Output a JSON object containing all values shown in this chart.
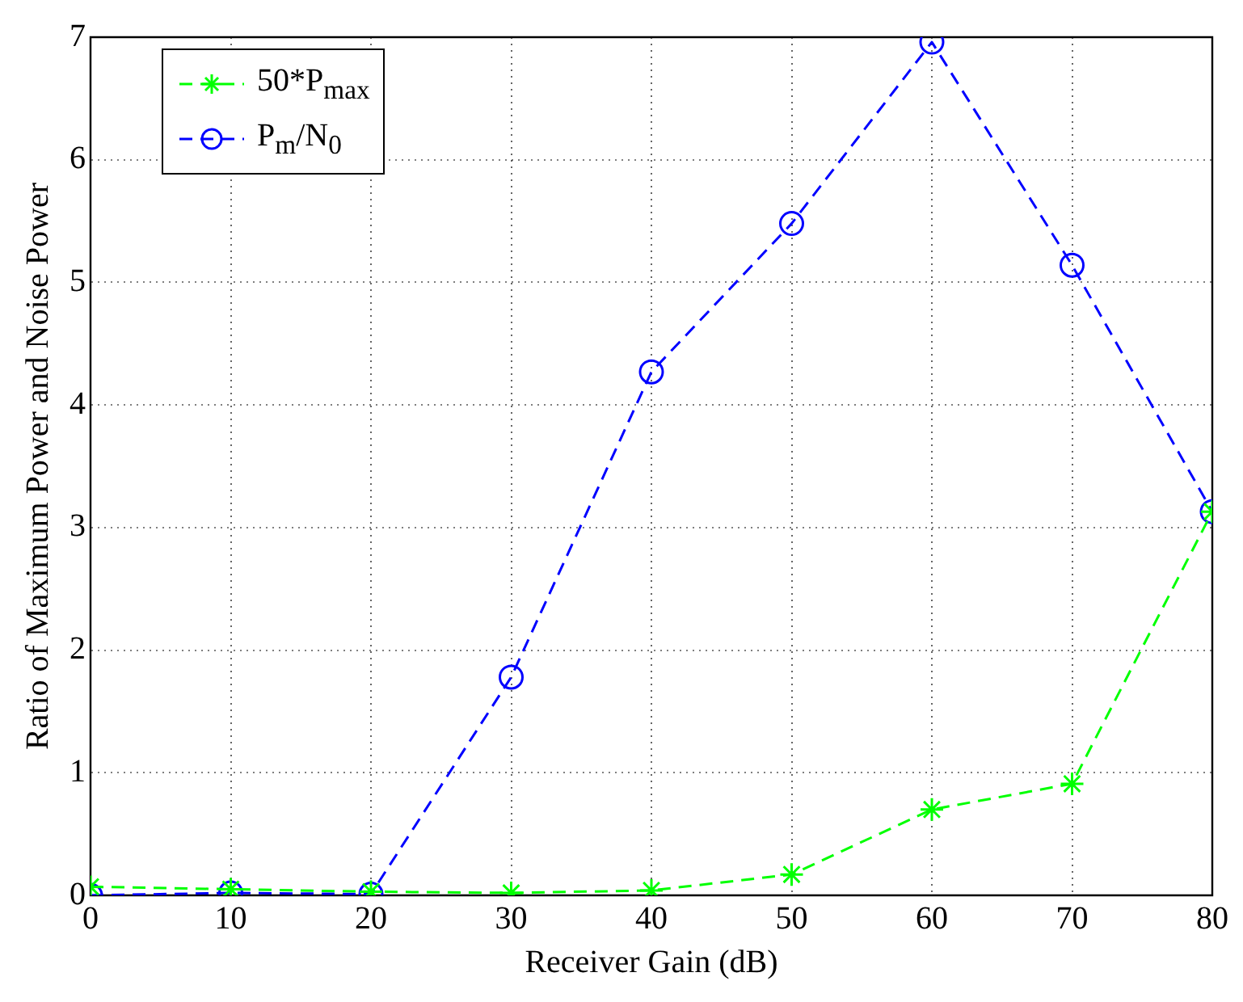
{
  "chart_data": {
    "type": "line",
    "xlabel": "Receiver Gain (dB)",
    "ylabel": "Ratio of Maximum Power and Noise Power",
    "x": [
      0,
      10,
      20,
      30,
      40,
      50,
      60,
      70,
      80
    ],
    "series": [
      {
        "name": "50*P$_{max}$",
        "color": "#00ff00",
        "marker": "cross",
        "line_style": "dashed",
        "values": [
          0.07,
          0.05,
          0.03,
          0.02,
          0.04,
          0.17,
          0.7,
          0.91,
          3.13
        ]
      },
      {
        "name": "P$_{m}$/N$_{0}$",
        "color": "#0000ff",
        "marker": "circle",
        "line_style": "dashed",
        "values": [
          0,
          0.02,
          0.01,
          1.78,
          4.27,
          5.48,
          6.96,
          5.14,
          3.13
        ]
      }
    ],
    "xlim": [
      0,
      80
    ],
    "xticks": [
      0,
      10,
      20,
      30,
      40,
      50,
      60,
      70,
      80
    ],
    "ylim": [
      0,
      7
    ],
    "yticks": [
      0,
      1,
      2,
      3,
      4,
      5,
      6,
      7
    ],
    "grid": true,
    "legend": "top left"
  }
}
